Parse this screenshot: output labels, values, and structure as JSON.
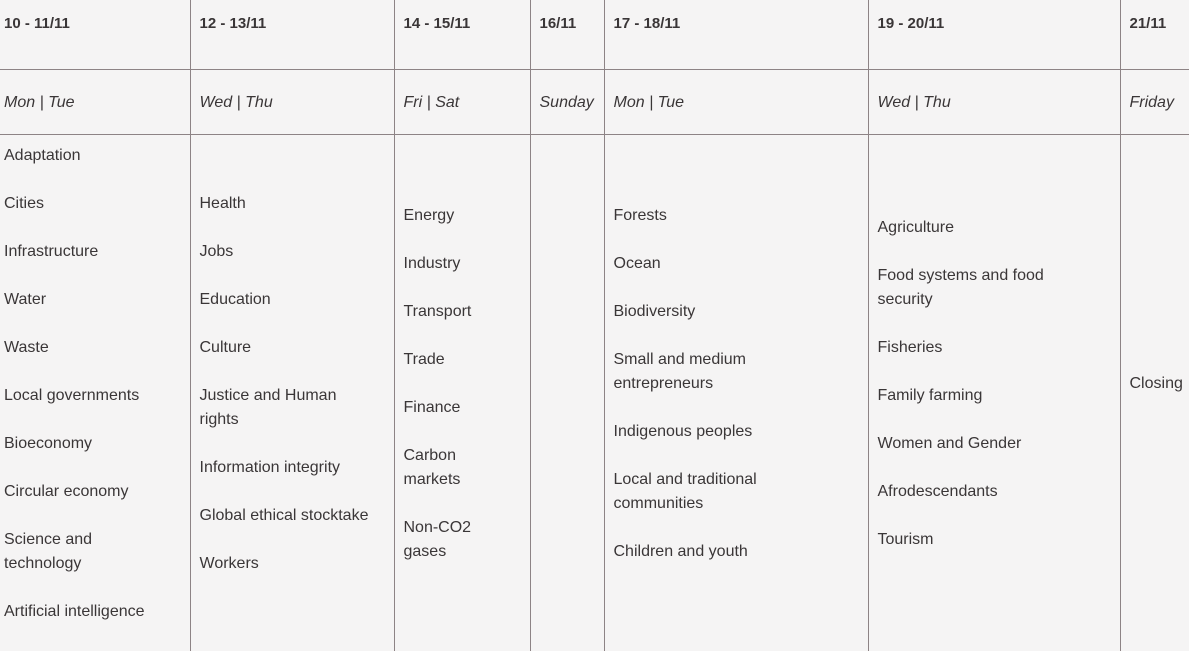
{
  "columns": [
    {
      "date": "10 - 11/11",
      "day": "Mon | Tue",
      "topics": [
        "Adaptation",
        "Cities",
        "Infrastructure",
        "Water",
        "Waste",
        "Local governments",
        "Bioeconomy",
        "Circular economy",
        "Science and technology",
        "Artificial intelligence"
      ]
    },
    {
      "date": "12 - 13/11",
      "day": "Wed | Thu",
      "topics": [
        "Health",
        "Jobs",
        "Education",
        "Culture",
        "Justice and Human rights",
        "Information integrity",
        "Global ethical stocktake",
        "Workers"
      ]
    },
    {
      "date": "14 - 15/11",
      "day": "Fri | Sat",
      "topics": [
        "Energy",
        "Industry",
        "Transport",
        "Trade",
        "Finance",
        "Carbon markets",
        "Non-CO2 gases"
      ]
    },
    {
      "date": "16/11",
      "day": "Sunday",
      "topics": []
    },
    {
      "date": "17 - 18/11",
      "day": "Mon | Tue",
      "topics": [
        "Forests",
        "Ocean",
        "Biodiversity",
        "Small and medium entrepreneurs",
        "Indigenous peoples",
        "Local and traditional communities",
        "Children and youth"
      ]
    },
    {
      "date": "19 - 20/11",
      "day": "Wed | Thu",
      "topics": [
        "Agriculture",
        "Food systems and food security",
        "Fisheries",
        "Family farming",
        "Women and Gender",
        "Afrodescendants",
        "Tourism"
      ]
    },
    {
      "date": "21/11",
      "day": "Friday",
      "topics": [
        "Closing"
      ]
    }
  ]
}
